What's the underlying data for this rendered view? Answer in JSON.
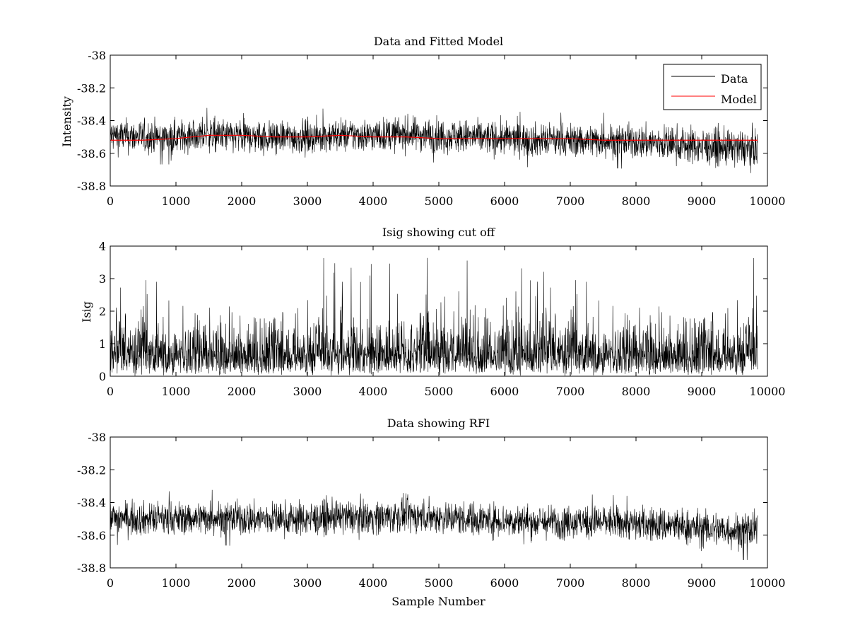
{
  "chart_data": [
    {
      "type": "line",
      "title": "Data and Fitted Model",
      "xlabel": "",
      "ylabel": "Intensity",
      "xlim": [
        0,
        10000
      ],
      "ylim": [
        -38.8,
        -38.0
      ],
      "x_ticks": [
        0,
        1000,
        2000,
        3000,
        4000,
        5000,
        6000,
        7000,
        8000,
        9000,
        10000
      ],
      "y_ticks": [
        -38.0,
        -38.2,
        -38.4,
        -38.6,
        -38.8
      ],
      "y_tick_labels": [
        "-38",
        "-38.2",
        "-38.4",
        "-38.6",
        "-38.8"
      ],
      "grid": false,
      "legend": {
        "position": "top-right",
        "entries": [
          "Data",
          "Model"
        ]
      },
      "series": [
        {
          "name": "Data",
          "color": "#000000",
          "x": [
            0,
            500,
            1000,
            1500,
            2000,
            2500,
            3000,
            3500,
            4000,
            4500,
            5000,
            5500,
            6000,
            6500,
            7000,
            7500,
            8000,
            8500,
            9000,
            9500,
            9850
          ],
          "y": [
            -38.49,
            -38.5,
            -38.5,
            -38.49,
            -38.5,
            -38.5,
            -38.5,
            -38.49,
            -38.49,
            -38.48,
            -38.49,
            -38.5,
            -38.51,
            -38.52,
            -38.52,
            -38.52,
            -38.53,
            -38.54,
            -38.56,
            -38.57,
            -38.57
          ],
          "band": [
            0.12,
            0.12,
            0.12,
            0.12,
            0.12,
            0.12,
            0.12,
            0.12,
            0.12,
            0.12,
            0.12,
            0.12,
            0.12,
            0.12,
            0.12,
            0.12,
            0.12,
            0.13,
            0.13,
            0.13,
            0.13
          ],
          "x_end": 9850
        },
        {
          "name": "Model",
          "color": "#ff0000",
          "x": [
            0,
            500,
            1000,
            1500,
            2000,
            2500,
            3000,
            3500,
            4000,
            4500,
            5000,
            5500,
            6000,
            6500,
            7000,
            7500,
            8000,
            8500,
            9000,
            9500,
            9850
          ],
          "y": [
            -38.52,
            -38.52,
            -38.51,
            -38.49,
            -38.49,
            -38.5,
            -38.5,
            -38.49,
            -38.5,
            -38.5,
            -38.51,
            -38.51,
            -38.51,
            -38.51,
            -38.51,
            -38.52,
            -38.52,
            -38.52,
            -38.52,
            -38.52,
            -38.52
          ]
        }
      ]
    },
    {
      "type": "line",
      "title": "Isig showing cut off",
      "xlabel": "",
      "ylabel": "Isig",
      "xlim": [
        0,
        10000
      ],
      "ylim": [
        0,
        4
      ],
      "x_ticks": [
        0,
        1000,
        2000,
        3000,
        4000,
        5000,
        6000,
        7000,
        8000,
        9000,
        10000
      ],
      "y_ticks": [
        0,
        1,
        2,
        3,
        4
      ],
      "y_tick_labels": [
        "0",
        "1",
        "2",
        "3",
        "4"
      ],
      "grid": false,
      "series": [
        {
          "color": "#000000",
          "x_end": 9850,
          "typical_max": 1.9,
          "peak_max": 3.65,
          "min": 0
        }
      ]
    },
    {
      "type": "line",
      "title": "Data showing RFI",
      "xlabel": "Sample Number",
      "ylabel": "",
      "xlim": [
        0,
        10000
      ],
      "ylim": [
        -38.8,
        -38.0
      ],
      "x_ticks": [
        0,
        1000,
        2000,
        3000,
        4000,
        5000,
        6000,
        7000,
        8000,
        9000,
        10000
      ],
      "y_ticks": [
        -38.0,
        -38.2,
        -38.4,
        -38.6,
        -38.8
      ],
      "y_tick_labels": [
        "-38",
        "-38.2",
        "-38.4",
        "-38.6",
        "-38.8"
      ],
      "grid": false,
      "series": [
        {
          "color": "#000000",
          "x": [
            0,
            500,
            1000,
            1500,
            2000,
            2500,
            3000,
            3500,
            4000,
            4500,
            5000,
            5500,
            6000,
            6500,
            7000,
            7500,
            8000,
            8500,
            9000,
            9500,
            9850
          ],
          "y": [
            -38.49,
            -38.5,
            -38.5,
            -38.49,
            -38.5,
            -38.5,
            -38.5,
            -38.49,
            -38.49,
            -38.48,
            -38.49,
            -38.5,
            -38.51,
            -38.52,
            -38.52,
            -38.52,
            -38.53,
            -38.54,
            -38.56,
            -38.57,
            -38.57
          ],
          "band": [
            0.12,
            0.12,
            0.12,
            0.12,
            0.12,
            0.12,
            0.12,
            0.12,
            0.12,
            0.12,
            0.12,
            0.12,
            0.12,
            0.12,
            0.12,
            0.12,
            0.12,
            0.13,
            0.13,
            0.13,
            0.13
          ],
          "x_end": 9850
        }
      ]
    }
  ]
}
